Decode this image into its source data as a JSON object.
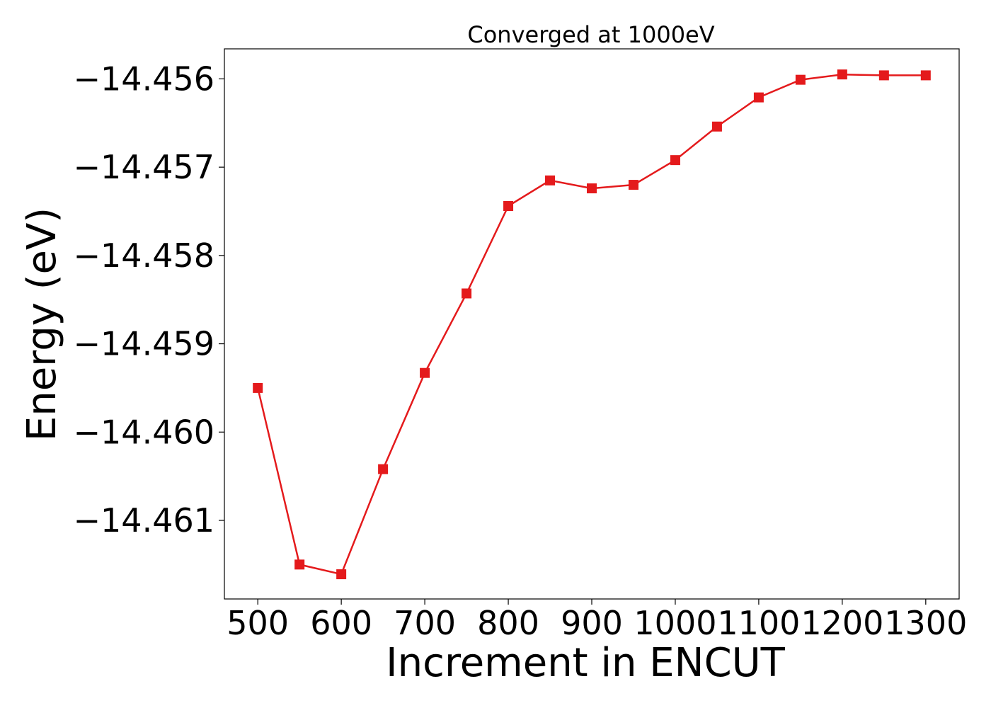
{
  "chart_data": {
    "type": "line",
    "title": "Converged at 1000eV",
    "xlabel": "Increment in ENCUT",
    "ylabel": "Energy (eV)",
    "xlim": [
      460,
      1340
    ],
    "ylim": [
      -14.46189,
      -14.45566
    ],
    "xticks": [
      500,
      600,
      700,
      800,
      900,
      1000,
      1100,
      1200,
      1300
    ],
    "yticks": [
      -14.461,
      -14.46,
      -14.459,
      -14.458,
      -14.457,
      -14.456
    ],
    "ytick_labels": [
      "−14.461",
      "−14.460",
      "−14.459",
      "−14.458",
      "−14.457",
      "−14.456"
    ],
    "grid": false,
    "color": "#e41a1c",
    "marker": "square",
    "series": [
      {
        "x": [
          500,
          550,
          600,
          650,
          700,
          750,
          800,
          850,
          900,
          950,
          1000,
          1050,
          1100,
          1150,
          1200,
          1250,
          1300
        ],
        "y": [
          -14.4595,
          -14.4615,
          -14.46161,
          -14.46042,
          -14.45933,
          -14.45843,
          -14.45744,
          -14.45715,
          -14.45724,
          -14.4572,
          -14.45692,
          -14.45654,
          -14.45621,
          -14.45601,
          -14.45595,
          -14.45596,
          -14.45596
        ]
      }
    ]
  }
}
